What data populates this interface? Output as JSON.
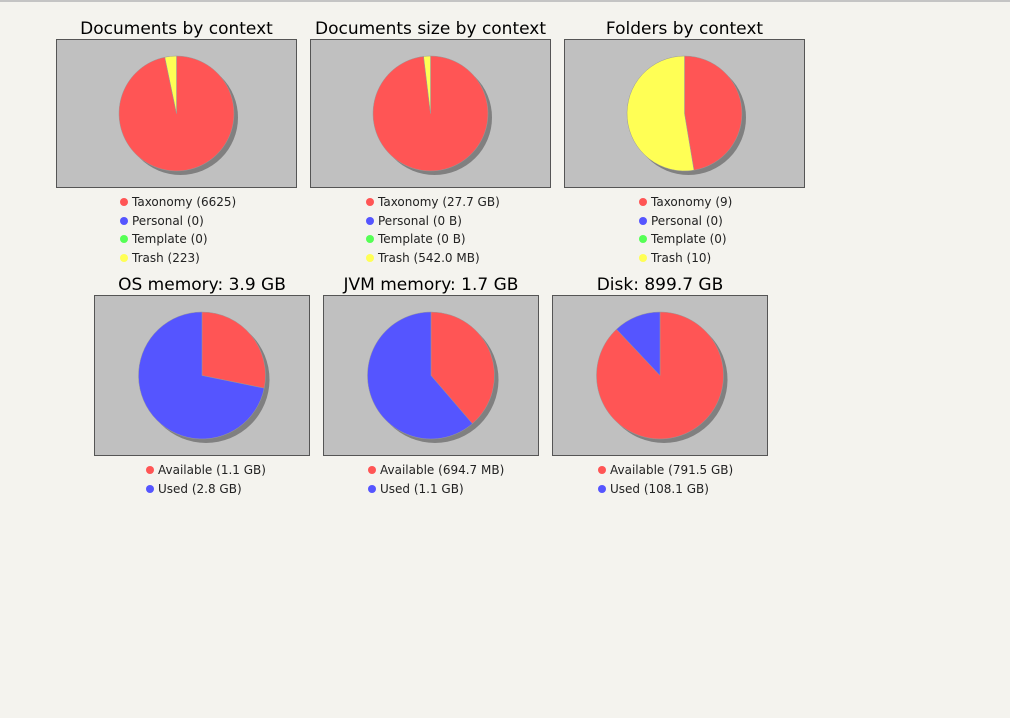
{
  "colors": {
    "taxonomy": "#ff5555",
    "personal": "#5555ff",
    "template": "#55ff55",
    "trash": "#ffff55",
    "available": "#ff5555",
    "used": "#5555ff"
  },
  "chart_data": [
    {
      "type": "pie",
      "title": "Documents by context",
      "slices": [
        {
          "label": "Taxonomy (6625)",
          "value": 6625,
          "color": "#ff5555"
        },
        {
          "label": "Personal (0)",
          "value": 0,
          "color": "#5555ff"
        },
        {
          "label": "Template (0)",
          "value": 0,
          "color": "#55ff55"
        },
        {
          "label": "Trash (223)",
          "value": 223,
          "color": "#ffff55"
        }
      ]
    },
    {
      "type": "pie",
      "title": "Documents size by context",
      "slices": [
        {
          "label": "Taxonomy (27.7 GB)",
          "value": 27.7,
          "color": "#ff5555"
        },
        {
          "label": "Personal (0 B)",
          "value": 0,
          "color": "#5555ff"
        },
        {
          "label": "Template (0 B)",
          "value": 0,
          "color": "#55ff55"
        },
        {
          "label": "Trash (542.0 MB)",
          "value": 0.542,
          "color": "#ffff55"
        }
      ]
    },
    {
      "type": "pie",
      "title": "Folders by context",
      "slices": [
        {
          "label": "Taxonomy (9)",
          "value": 9,
          "color": "#ff5555"
        },
        {
          "label": "Personal (0)",
          "value": 0,
          "color": "#5555ff"
        },
        {
          "label": "Template (0)",
          "value": 0,
          "color": "#55ff55"
        },
        {
          "label": "Trash (10)",
          "value": 10,
          "color": "#ffff55"
        }
      ]
    },
    {
      "type": "pie",
      "title": "OS memory: 3.9 GB",
      "slices": [
        {
          "label": "Available (1.1 GB)",
          "value": 1.1,
          "color": "#ff5555"
        },
        {
          "label": "Used (2.8 GB)",
          "value": 2.8,
          "color": "#5555ff"
        }
      ]
    },
    {
      "type": "pie",
      "title": "JVM memory: 1.7 GB",
      "slices": [
        {
          "label": "Available (694.7 MB)",
          "value": 0.6947,
          "color": "#ff5555"
        },
        {
          "label": "Used (1.1 GB)",
          "value": 1.1,
          "color": "#5555ff"
        }
      ]
    },
    {
      "type": "pie",
      "title": "Disk: 899.7 GB",
      "slices": [
        {
          "label": "Available (791.5 GB)",
          "value": 791.5,
          "color": "#ff5555"
        },
        {
          "label": "Used (108.1 GB)",
          "value": 108.1,
          "color": "#5555ff"
        }
      ]
    }
  ]
}
